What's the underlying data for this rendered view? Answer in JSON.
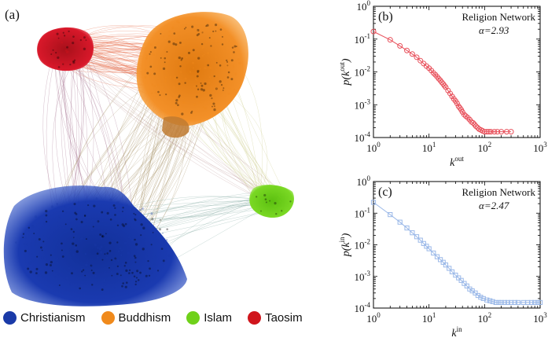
{
  "network": {
    "panel_label": "(a)",
    "legend": [
      {
        "label": "Christianism",
        "color": "#1a3aa8"
      },
      {
        "label": "Buddhism",
        "color": "#f08a1c"
      },
      {
        "label": "Islam",
        "color": "#6fd11a"
      },
      {
        "label": "Taosim",
        "color": "#d0151c"
      }
    ]
  },
  "chart_data": [
    {
      "type": "scatter",
      "panel_label": "(b)",
      "annotation": "Religion Network",
      "alpha_text": "α=2.93",
      "xlabel_base": "k",
      "xlabel_sup": "out",
      "ylabel_pre": "p(k",
      "ylabel_sup": "out",
      "ylabel_post": ")",
      "xscale": "log",
      "yscale": "log",
      "xlim": [
        1,
        1000
      ],
      "ylim": [
        0.0001,
        1
      ],
      "xticks": [
        {
          "v": 1,
          "exp": "0"
        },
        {
          "v": 10,
          "exp": "1"
        },
        {
          "v": 100,
          "exp": "2"
        },
        {
          "v": 1000,
          "exp": "3"
        }
      ],
      "yticks": [
        {
          "v": 0.0001,
          "exp": "-4"
        },
        {
          "v": 0.001,
          "exp": "-3"
        },
        {
          "v": 0.01,
          "exp": "-2"
        },
        {
          "v": 0.1,
          "exp": "-1"
        },
        {
          "v": 1,
          "exp": "0"
        }
      ],
      "color": "#e8505b",
      "marker": "circle",
      "series": [
        {
          "x": [
            1,
            2,
            3,
            4,
            5,
            6,
            7,
            8,
            9,
            10,
            11,
            12,
            13,
            14,
            15,
            16,
            17,
            18,
            19,
            20,
            22,
            24,
            26,
            28,
            30,
            32,
            34,
            36,
            38,
            40,
            43,
            46,
            50,
            54,
            58,
            62,
            66,
            70,
            75,
            80,
            86,
            92,
            100,
            110,
            120,
            130,
            150,
            170,
            200,
            250,
            300
          ],
          "y": [
            0.17,
            0.095,
            0.062,
            0.045,
            0.035,
            0.028,
            0.022,
            0.018,
            0.015,
            0.013,
            0.011,
            0.0093,
            0.0082,
            0.0071,
            0.0062,
            0.0055,
            0.0048,
            0.0043,
            0.0038,
            0.0034,
            0.0027,
            0.0022,
            0.0018,
            0.0015,
            0.0013,
            0.0011,
            0.0009,
            0.0008,
            0.0007,
            0.0006,
            0.0005,
            0.00045,
            0.0004,
            0.00035,
            0.0003,
            0.00028,
            0.00025,
            0.00022,
            0.0002,
            0.00018,
            0.00017,
            0.00016,
            0.00015,
            0.00015,
            0.00015,
            0.00015,
            0.00015,
            0.00015,
            0.00015,
            0.00015,
            0.00015
          ]
        }
      ]
    },
    {
      "type": "scatter",
      "panel_label": "(c)",
      "annotation": "Religion Network",
      "alpha_text": "α=2.47",
      "xlabel_base": "k",
      "xlabel_sup": "in",
      "ylabel_pre": "p(k",
      "ylabel_sup": "in",
      "ylabel_post": ")",
      "xscale": "log",
      "yscale": "log",
      "xlim": [
        1,
        1000
      ],
      "ylim": [
        0.0001,
        1
      ],
      "xticks": [
        {
          "v": 1,
          "exp": "0"
        },
        {
          "v": 10,
          "exp": "1"
        },
        {
          "v": 100,
          "exp": "2"
        },
        {
          "v": 1000,
          "exp": "3"
        }
      ],
      "yticks": [
        {
          "v": 0.0001,
          "exp": "-4"
        },
        {
          "v": 0.001,
          "exp": "-3"
        },
        {
          "v": 0.01,
          "exp": "-2"
        },
        {
          "v": 0.1,
          "exp": "-1"
        },
        {
          "v": 1,
          "exp": "0"
        }
      ],
      "color": "#9ab8e8",
      "marker": "square",
      "series": [
        {
          "x": [
            1,
            2,
            3,
            4,
            5,
            6,
            7,
            8,
            9,
            10,
            12,
            14,
            16,
            18,
            20,
            23,
            26,
            30,
            34,
            38,
            43,
            48,
            54,
            60,
            68,
            76,
            85,
            95,
            110,
            125,
            140,
            160,
            180,
            200,
            230,
            260,
            300,
            350,
            400,
            500,
            600,
            700,
            800,
            900,
            1000
          ],
          "y": [
            0.22,
            0.09,
            0.052,
            0.034,
            0.024,
            0.018,
            0.014,
            0.011,
            0.009,
            0.0075,
            0.0055,
            0.0042,
            0.0034,
            0.0028,
            0.0023,
            0.0018,
            0.0014,
            0.0011,
            0.0009,
            0.00075,
            0.0006,
            0.0005,
            0.0004,
            0.00035,
            0.0003,
            0.00025,
            0.00022,
            0.0002,
            0.00018,
            0.00017,
            0.00016,
            0.00015,
            0.00015,
            0.00015,
            0.00015,
            0.00015,
            0.00015,
            0.00015,
            0.00015,
            0.00015,
            0.00015,
            0.00015,
            0.00015,
            0.00015,
            0.00015
          ]
        }
      ]
    }
  ]
}
